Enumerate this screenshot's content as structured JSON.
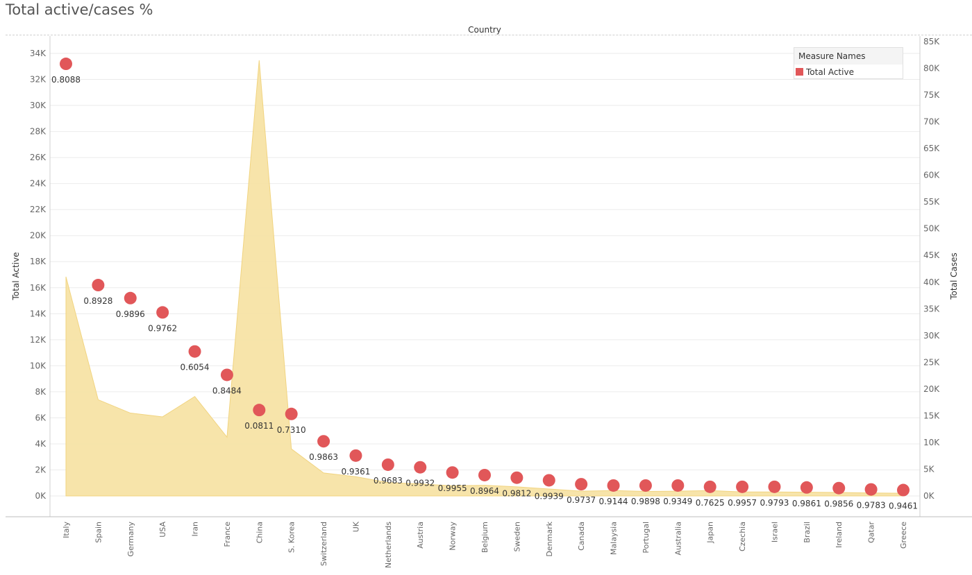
{
  "page": {
    "title": "Total active/cases %",
    "column_header": "Country"
  },
  "legend": {
    "title": "Measure Names",
    "item": "Total Active",
    "color": "#e15759"
  },
  "colors": {
    "marks": "#e15759",
    "area_fill": "#f7e3a6",
    "area_stroke": "#f1d27a",
    "grid": "#ebebeb"
  },
  "chart_data": {
    "type": "scatter",
    "title": "Total active/cases %",
    "xlabel": "Country",
    "categories": [
      "Italy",
      "Spain",
      "Germany",
      "USA",
      "Iran",
      "France",
      "China",
      "S. Korea",
      "Switzerland",
      "UK",
      "Netherlands",
      "Austria",
      "Norway",
      "Belgium",
      "Sweden",
      "Denmark",
      "Canada",
      "Malaysia",
      "Portugal",
      "Australia",
      "Japan",
      "Czechia",
      "Israel",
      "Brazil",
      "Ireland",
      "Qatar",
      "Greece"
    ],
    "left_axis": {
      "label": "Total Active",
      "ylim": [
        0,
        34000
      ],
      "ticks": [
        0,
        2000,
        4000,
        6000,
        8000,
        10000,
        12000,
        14000,
        16000,
        18000,
        20000,
        22000,
        24000,
        26000,
        28000,
        30000,
        32000,
        34000
      ],
      "tick_labels": [
        "0K",
        "2K",
        "4K",
        "6K",
        "8K",
        "10K",
        "12K",
        "14K",
        "16K",
        "18K",
        "20K",
        "22K",
        "24K",
        "26K",
        "28K",
        "30K",
        "32K",
        "34K"
      ]
    },
    "right_axis": {
      "label": "Total Cases",
      "ylim": [
        0,
        85000
      ],
      "ticks": [
        0,
        5000,
        10000,
        15000,
        20000,
        25000,
        30000,
        35000,
        40000,
        45000,
        50000,
        55000,
        60000,
        65000,
        70000,
        75000,
        80000,
        85000
      ],
      "tick_labels": [
        "0K",
        "5K",
        "10K",
        "15K",
        "20K",
        "25K",
        "30K",
        "35K",
        "40K",
        "45K",
        "50K",
        "55K",
        "60K",
        "65K",
        "70K",
        "75K",
        "80K",
        "85K"
      ]
    },
    "series": [
      {
        "name": "Total Active",
        "type": "scatter",
        "axis": "left",
        "values": [
          33200,
          16200,
          15200,
          14100,
          11100,
          9300,
          6600,
          6300,
          4200,
          3100,
          2400,
          2200,
          1800,
          1600,
          1400,
          1200,
          900,
          800,
          800,
          800,
          700,
          700,
          700,
          650,
          600,
          500,
          450
        ],
        "labels": [
          "0.8088",
          "0.8928",
          "0.9896",
          "0.9762",
          "0.6054",
          "0.8484",
          "0.0811",
          "0.7310",
          "0.9863",
          "0.9361",
          "0.9683",
          "0.9932",
          "0.9955",
          "0.8964",
          "0.9812",
          "0.9939",
          "0.9737",
          "0.9144",
          "0.9898",
          "0.9349",
          "0.7625",
          "0.9957",
          "0.9793",
          "0.9861",
          "0.9856",
          "0.9783",
          "0.9461"
        ]
      },
      {
        "type": "area",
        "axis": "right",
        "values": [
          41000,
          18000,
          15500,
          14800,
          18600,
          11000,
          81500,
          8800,
          4300,
          3600,
          2500,
          2250,
          1900,
          2000,
          1700,
          1300,
          900,
          1000,
          850,
          900,
          1000,
          750,
          750,
          700,
          650,
          550,
          500
        ]
      }
    ],
    "grid": true,
    "legend_position": "top-right"
  }
}
